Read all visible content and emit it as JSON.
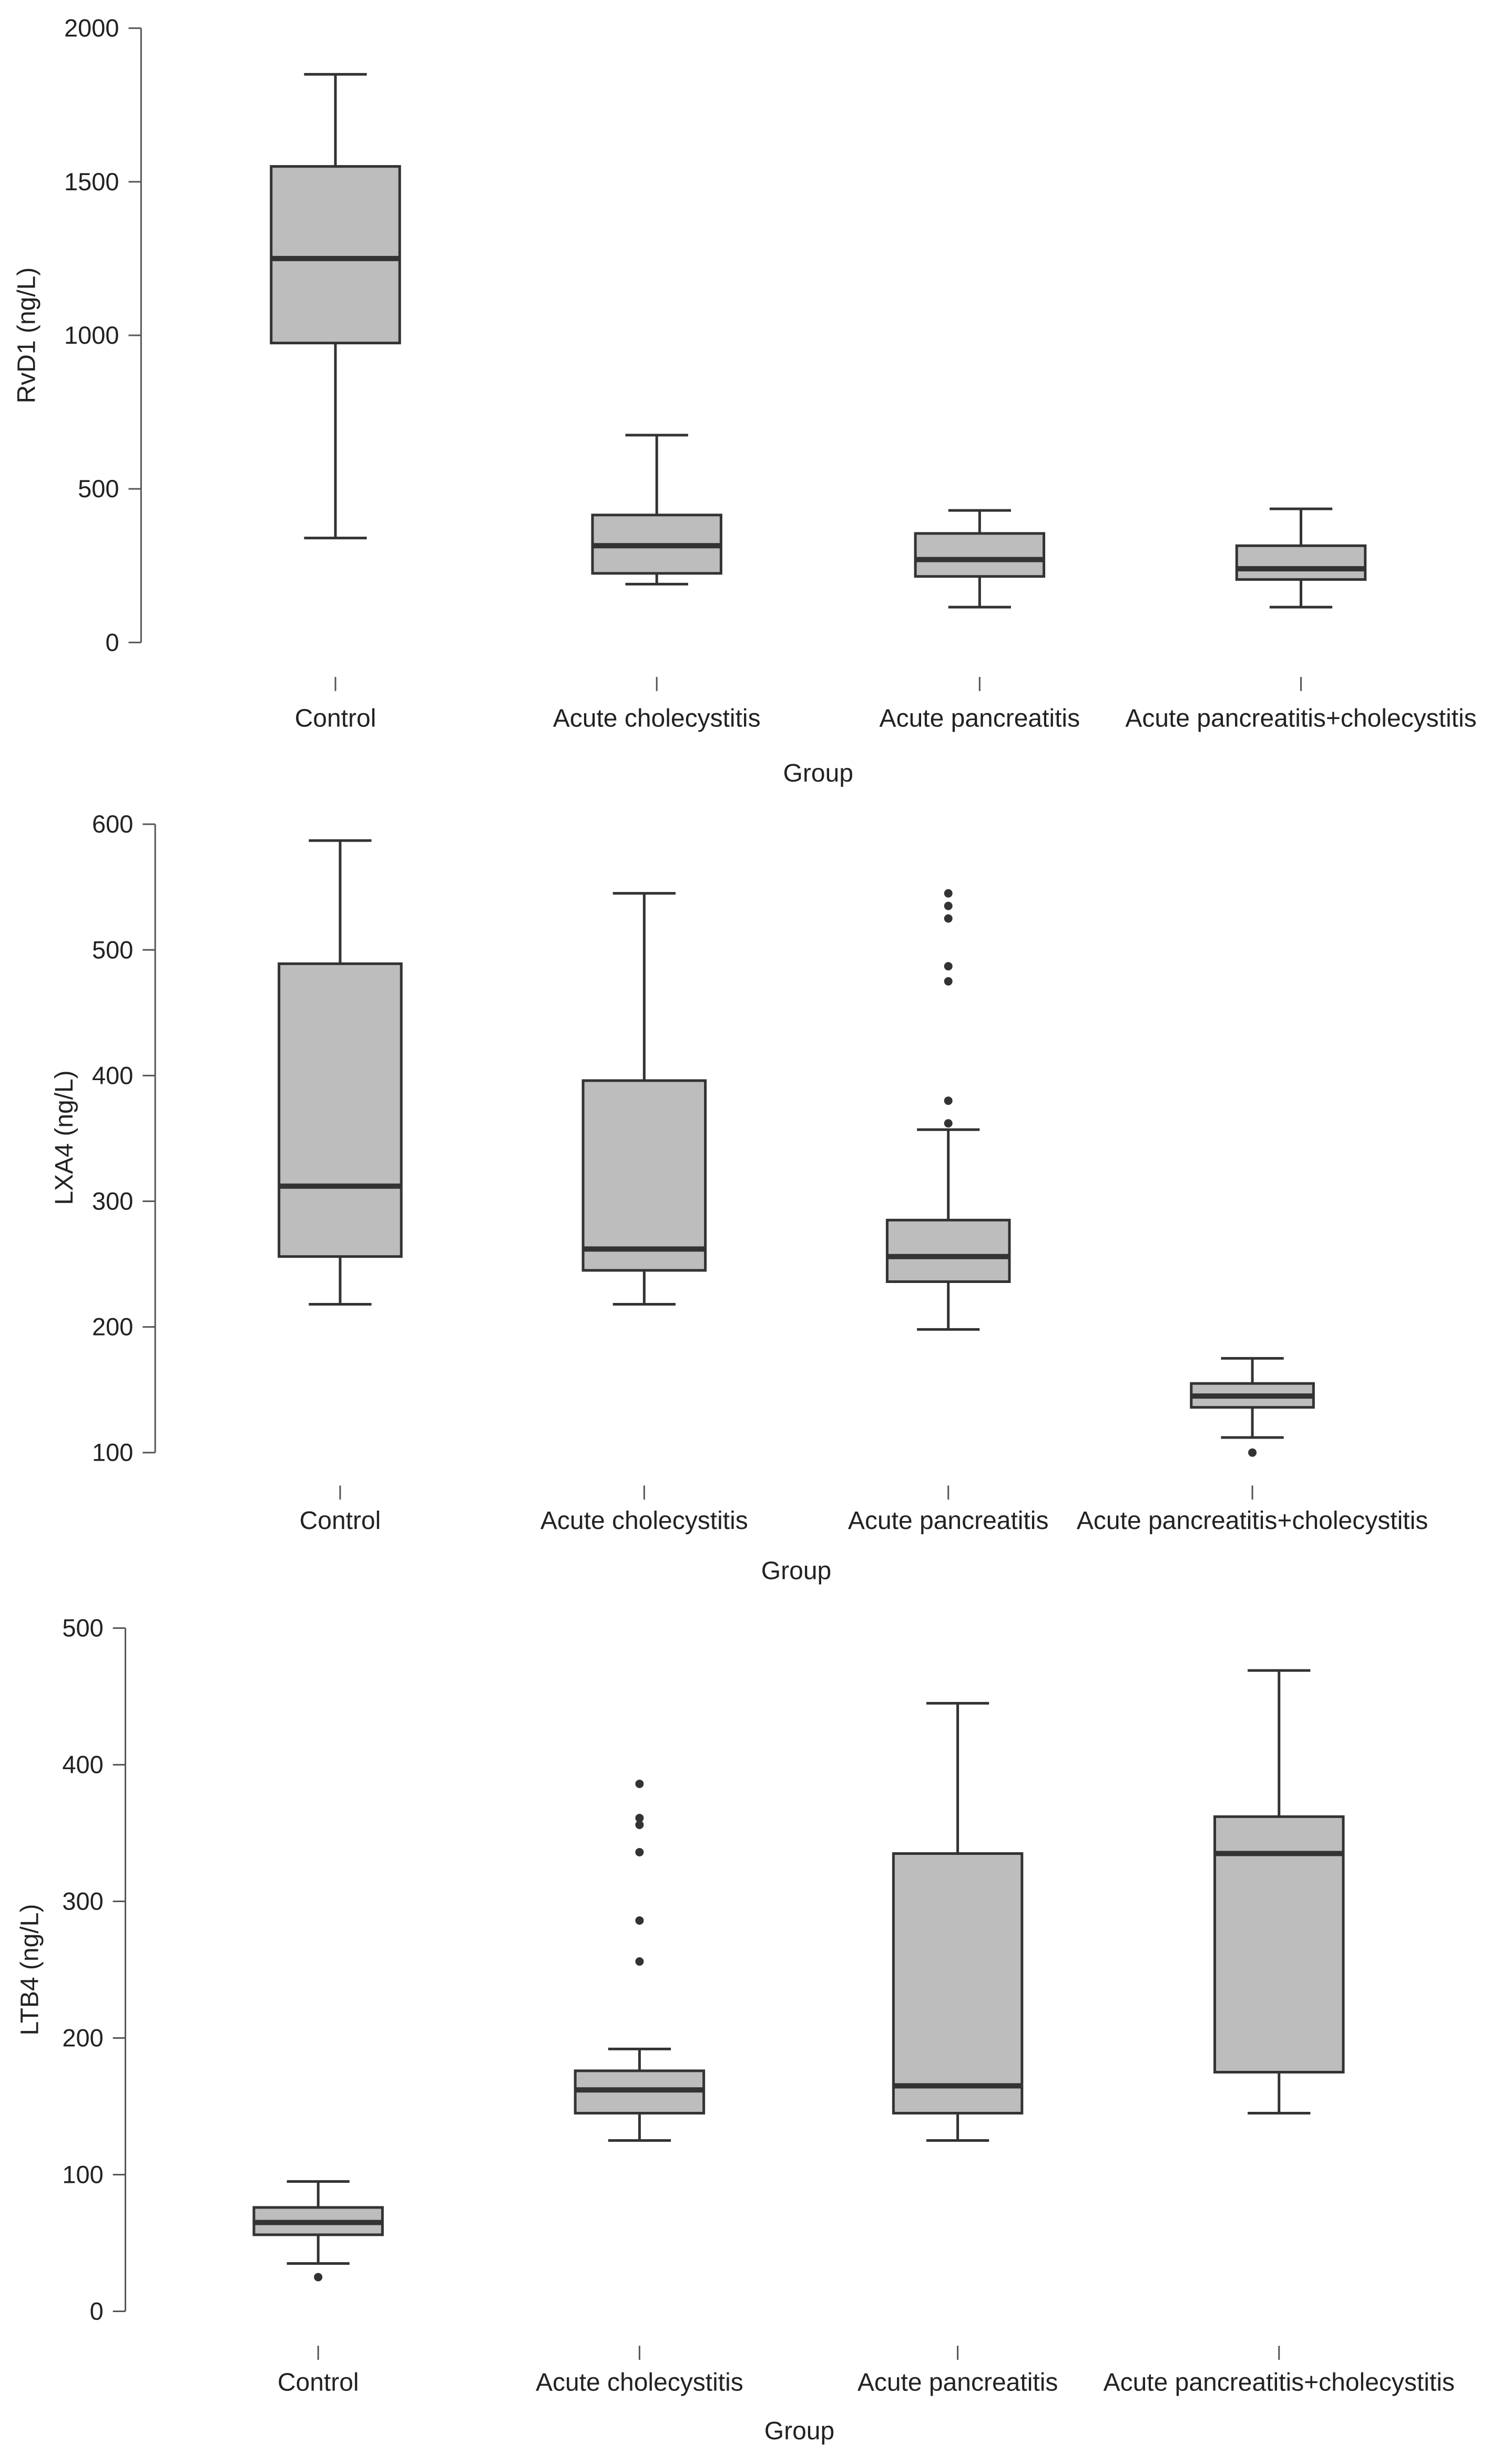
{
  "chart_data": [
    {
      "type": "box",
      "xlabel": "Group",
      "ylabel": "RvD1 (ng/L)",
      "ylim": [
        0,
        2000
      ],
      "yticks": [
        0,
        500,
        1000,
        1500,
        2000
      ],
      "categories": [
        "Control",
        "Acute cholecystitis",
        "Acute pancreatitis",
        "Acute pancreatitis+cholecystitis"
      ],
      "boxes": [
        {
          "min": 340,
          "q1": 975,
          "median": 1250,
          "q3": 1550,
          "max": 1850,
          "outliers": []
        },
        {
          "min": 190,
          "q1": 225,
          "median": 315,
          "q3": 415,
          "max": 675,
          "outliers": []
        },
        {
          "min": 115,
          "q1": 215,
          "median": 270,
          "q3": 355,
          "max": 430,
          "outliers": []
        },
        {
          "min": 115,
          "q1": 205,
          "median": 240,
          "q3": 315,
          "max": 435,
          "outliers": []
        }
      ]
    },
    {
      "type": "box",
      "xlabel": "Group",
      "ylabel": "LXA4  (ng/L)",
      "ylim": [
        100,
        600
      ],
      "yticks": [
        100,
        200,
        300,
        400,
        500,
        600
      ],
      "categories": [
        "Control",
        "Acute cholecystitis",
        "Acute pancreatitis",
        "Acute pancreatitis+cholecystitis"
      ],
      "boxes": [
        {
          "min": 218,
          "q1": 256,
          "median": 312,
          "q3": 489,
          "max": 587,
          "outliers": []
        },
        {
          "min": 218,
          "q1": 245,
          "median": 262,
          "q3": 396,
          "max": 545,
          "outliers": []
        },
        {
          "min": 198,
          "q1": 236,
          "median": 256,
          "q3": 285,
          "max": 357,
          "outliers": [
            362,
            380,
            475,
            487,
            525,
            535,
            545
          ]
        },
        {
          "min": 112,
          "q1": 136,
          "median": 145,
          "q3": 155,
          "max": 175,
          "outliers": [
            100
          ]
        }
      ]
    },
    {
      "type": "box",
      "xlabel": "Group",
      "ylabel": "LTB4 (ng/L)",
      "ylim": [
        0,
        500
      ],
      "yticks": [
        0,
        100,
        200,
        300,
        400,
        500
      ],
      "categories": [
        "Control",
        "Acute cholecystitis",
        "Acute pancreatitis",
        "Acute pancreatitis+cholecystitis"
      ],
      "boxes": [
        {
          "min": 35,
          "q1": 56,
          "median": 65,
          "q3": 76,
          "max": 95,
          "outliers": [
            25
          ]
        },
        {
          "min": 125,
          "q1": 145,
          "median": 162,
          "q3": 176,
          "max": 192,
          "outliers": [
            256,
            286,
            336,
            356,
            361,
            386
          ]
        },
        {
          "min": 125,
          "q1": 145,
          "median": 165,
          "q3": 335,
          "max": 445,
          "outliers": []
        },
        {
          "min": 145,
          "q1": 175,
          "median": 335,
          "q3": 362,
          "max": 469,
          "outliers": []
        }
      ]
    }
  ]
}
